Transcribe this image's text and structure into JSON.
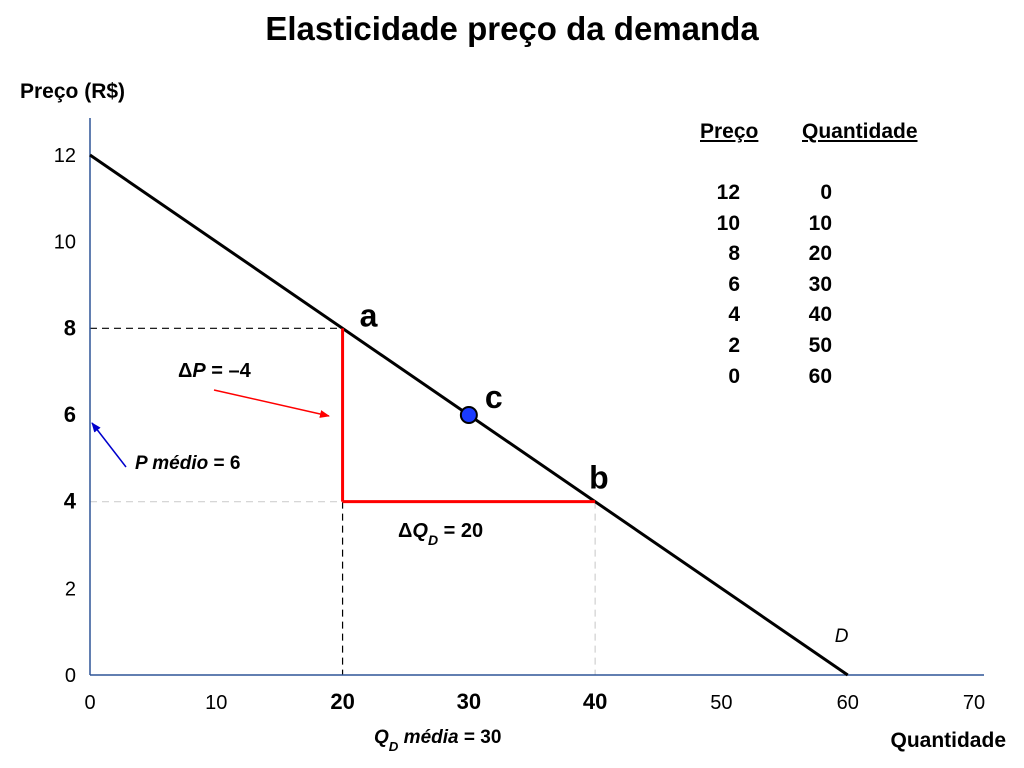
{
  "page": {
    "title": "Elasticidade preço da demanda"
  },
  "table": {
    "headers": [
      "Preço",
      "Quantidade"
    ],
    "rows": [
      [
        "12",
        "0"
      ],
      [
        "10",
        "10"
      ],
      [
        "8",
        "20"
      ],
      [
        "6",
        "30"
      ],
      [
        "4",
        "40"
      ],
      [
        "2",
        "50"
      ],
      [
        "0",
        "60"
      ]
    ]
  },
  "chart_data": {
    "type": "line",
    "title": "Elasticidade preço da demanda",
    "ylabel": "Preço (R$)",
    "xlabel": "Quantidade",
    "xlim": [
      0,
      70
    ],
    "ylim": [
      0,
      12
    ],
    "x_ticks": [
      "0",
      "10",
      "20",
      "30",
      "40",
      "50",
      "60",
      "70"
    ],
    "y_ticks": [
      "0",
      "2",
      "4",
      "6",
      "8",
      "10",
      "12"
    ],
    "bold_x_ticks": [
      "20",
      "30",
      "40"
    ],
    "bold_y_ticks": [
      "4",
      "6",
      "8"
    ],
    "series": [
      {
        "name": "D",
        "x": [
          0,
          60
        ],
        "y": [
          12,
          0
        ],
        "color": "#000000"
      }
    ],
    "points": [
      {
        "label": "a",
        "x": 20,
        "y": 8
      },
      {
        "label": "b",
        "x": 40,
        "y": 4
      },
      {
        "label": "c",
        "x": 30,
        "y": 6,
        "marker": "circle",
        "color": "#1a3bff"
      }
    ],
    "annotations": {
      "delta_p": {
        "symbol": "Δ",
        "var": "P",
        "text": " = –4",
        "color": "#ff0000"
      },
      "delta_q": {
        "symbol": "Δ",
        "var": "Q",
        "sub": "D",
        "text": " = 20",
        "color": "#ff0000"
      },
      "p_medio": {
        "var": "P",
        "italic": " médio",
        "text": " = 6",
        "color": "#0000cc"
      },
      "q_media": {
        "var": "Q",
        "sub": "D",
        "italic": " média",
        "text": " = 30"
      }
    },
    "grid": false
  }
}
